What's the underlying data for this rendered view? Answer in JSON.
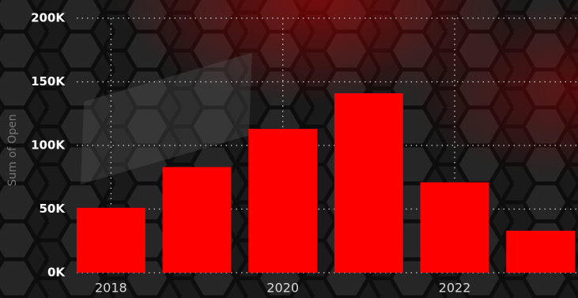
{
  "chart_data": {
    "type": "bar",
    "y_label": "Sum of Open",
    "categories": [
      "2018",
      null,
      "2020",
      null,
      "2022",
      null
    ],
    "values": [
      51000,
      83000,
      113000,
      141000,
      71000,
      33000
    ],
    "color": "#ff0000",
    "ylim": [
      0,
      200000
    ],
    "yticks": [
      {
        "value": 0,
        "label": "0K"
      },
      {
        "value": 50000,
        "label": "50K"
      },
      {
        "value": 100000,
        "label": "100K"
      },
      {
        "value": 150000,
        "label": "150K"
      },
      {
        "value": 200000,
        "label": "200K"
      }
    ],
    "grid": true
  }
}
